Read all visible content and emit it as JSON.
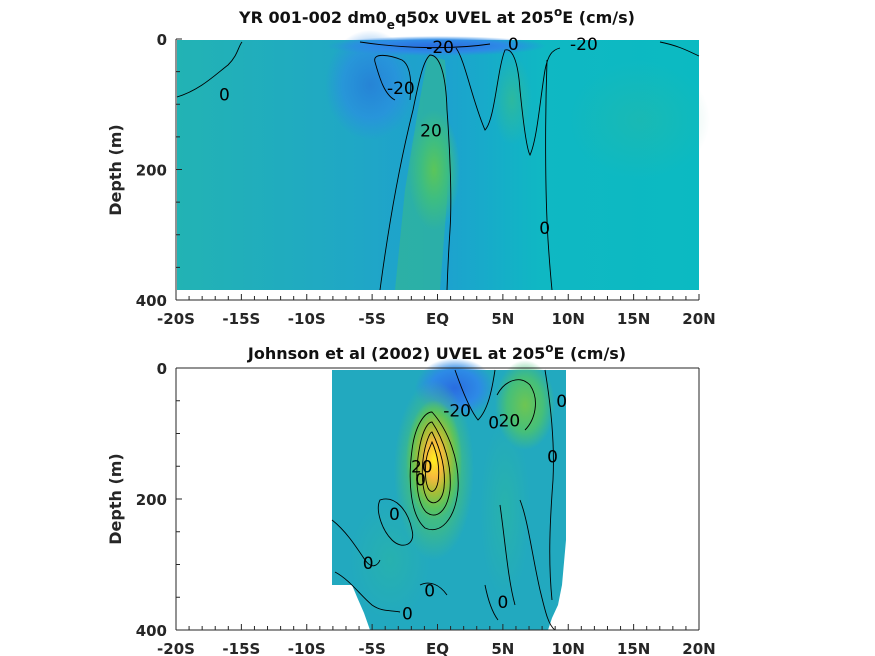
{
  "chart_data": [
    {
      "type": "contour",
      "title_main": "YR 001-002 dm0",
      "title_sub": "e",
      "title_rest": "q50x UVEL at 205",
      "title_sup": "o",
      "title_tail": "E (cm/s)",
      "ylabel": "Depth (m)",
      "xlabel": "",
      "xlim": [
        -20,
        20
      ],
      "ylim": [
        0,
        400
      ],
      "y_reversed": true,
      "x_ticks": [
        -20,
        -15,
        -10,
        -5,
        0,
        5,
        10,
        15,
        20
      ],
      "x_tick_labels": [
        "-20S",
        "-15S",
        "-10S",
        "-5S",
        "EQ",
        "5N",
        "10N",
        "15N",
        "20N"
      ],
      "y_ticks": [
        0,
        200,
        400
      ],
      "y_tick_labels": [
        "0",
        "200",
        "400"
      ],
      "contour_labels": [
        {
          "text": "-20",
          "x": 0.2,
          "y": 12
        },
        {
          "text": "0",
          "x": 5.8,
          "y": 8
        },
        {
          "text": "-20",
          "x": 11.2,
          "y": 8
        },
        {
          "text": "0",
          "x": -16.3,
          "y": 85
        },
        {
          "text": "-20",
          "x": -2.8,
          "y": 75
        },
        {
          "text": "20",
          "x": -0.5,
          "y": 140
        },
        {
          "text": "0",
          "x": 8.2,
          "y": 290
        }
      ],
      "grid": false
    },
    {
      "type": "contour",
      "title_main": "Johnson et al (2002) UVEL at 205",
      "title_sup": "o",
      "title_tail": "E (cm/s)",
      "ylabel": "Depth (m)",
      "xlabel": "",
      "xlim": [
        -20,
        20
      ],
      "ylim": [
        0,
        400
      ],
      "y_reversed": true,
      "x_ticks": [
        -20,
        -15,
        -10,
        -5,
        0,
        5,
        10,
        15,
        20
      ],
      "x_tick_labels": [
        "-20S",
        "-15S",
        "-10S",
        "-5S",
        "EQ",
        "5N",
        "10N",
        "15N",
        "20N"
      ],
      "y_ticks": [
        0,
        200,
        400
      ],
      "y_tick_labels": [
        "0",
        "200",
        "400"
      ],
      "contour_labels": [
        {
          "text": "-20",
          "x": 1.5,
          "y": 65
        },
        {
          "text": "20",
          "x": 5.5,
          "y": 80
        },
        {
          "text": "0",
          "x": 9.5,
          "y": 50
        },
        {
          "text": "0",
          "x": 4.3,
          "y": 83
        },
        {
          "text": "0",
          "x": 8.8,
          "y": 135
        },
        {
          "text": "20",
          "x": -1.2,
          "y": 150
        },
        {
          "text": "0",
          "x": -1.3,
          "y": 170
        },
        {
          "text": "0",
          "x": -3.3,
          "y": 223
        },
        {
          "text": "0",
          "x": -5.3,
          "y": 298
        },
        {
          "text": "0",
          "x": -0.6,
          "y": 340
        },
        {
          "text": "0",
          "x": 5.0,
          "y": 357
        },
        {
          "text": "0",
          "x": -2.3,
          "y": 375
        }
      ],
      "grid": false
    }
  ]
}
